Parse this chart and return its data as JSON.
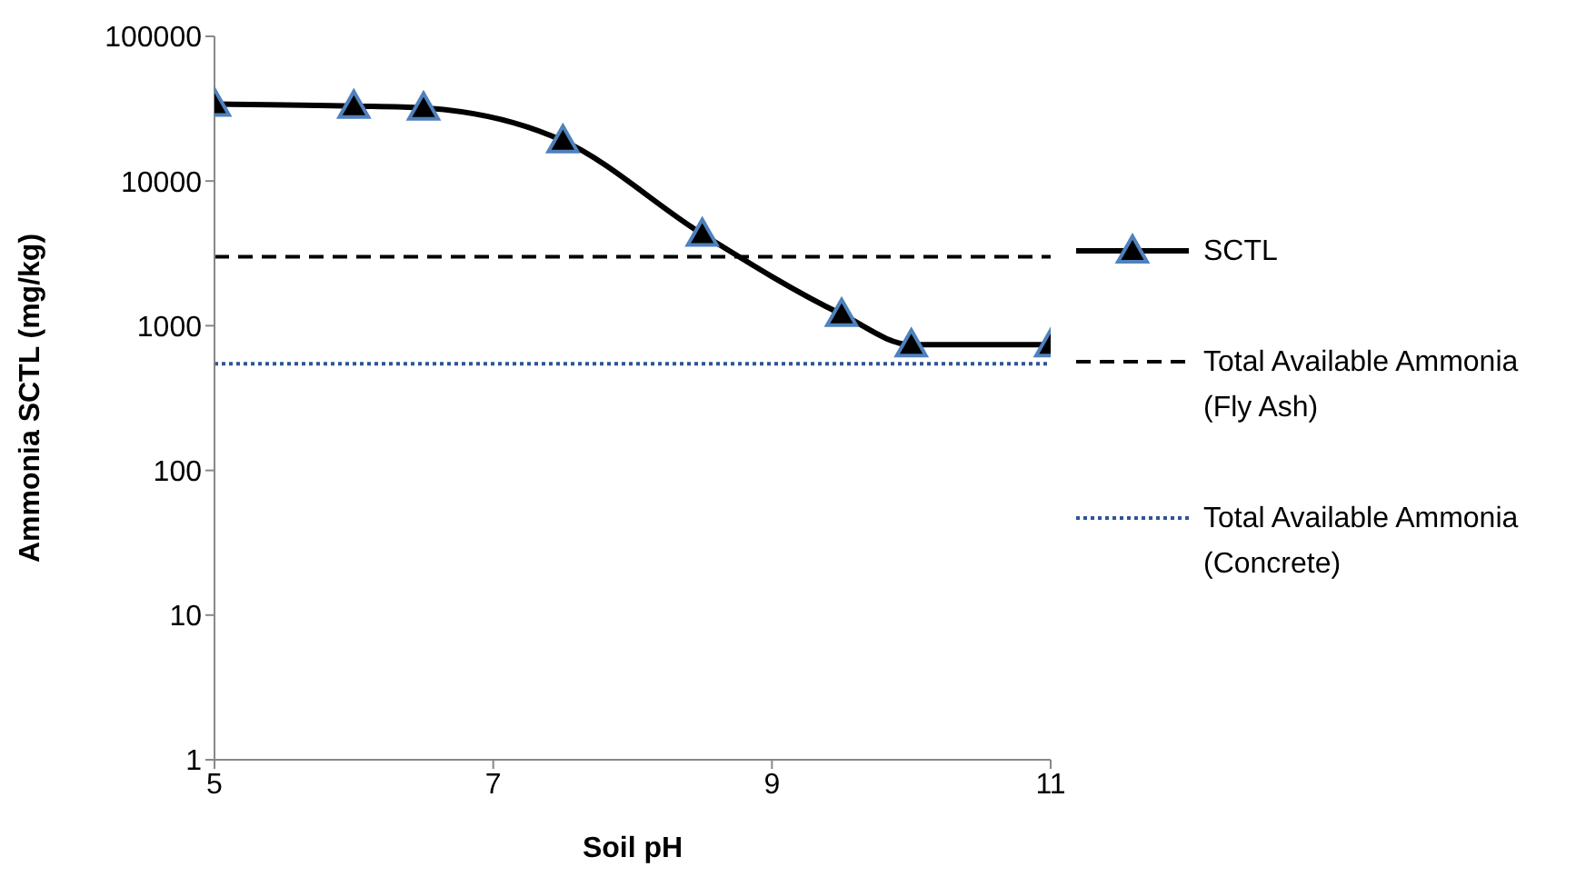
{
  "chart_data": {
    "type": "line",
    "xlabel": "Soil pH",
    "ylabel": "Ammonia SCTL (mg/kg)",
    "log": "y",
    "grid": false,
    "legend": "right",
    "xlim": [
      5,
      11
    ],
    "xticks": [
      5,
      7,
      9,
      11
    ],
    "ylim": [
      1,
      100000
    ],
    "yticks": [
      1,
      10,
      100,
      1000,
      10000,
      100000
    ],
    "series": [
      {
        "name": "SCTL",
        "color": "#000000",
        "marker": "triangle",
        "line_style": "solid",
        "x": [
          5,
          6,
          6.5,
          7.5,
          8.5,
          9.5,
          10,
          11
        ],
        "values": [
          34000,
          33000,
          32000,
          19000,
          4300,
          1200,
          740,
          740
        ]
      },
      {
        "name": "Total Available Ammonia (Fly Ash)",
        "color": "#000000",
        "marker": "none",
        "line_style": "dashed",
        "x": [
          5,
          11
        ],
        "values": [
          3000,
          3000
        ]
      },
      {
        "name": "Total Available Ammonia (Concrete)",
        "color": "#2e5597",
        "marker": "none",
        "line_style": "dotted",
        "x": [
          5,
          11
        ],
        "values": [
          545,
          545
        ]
      }
    ]
  }
}
